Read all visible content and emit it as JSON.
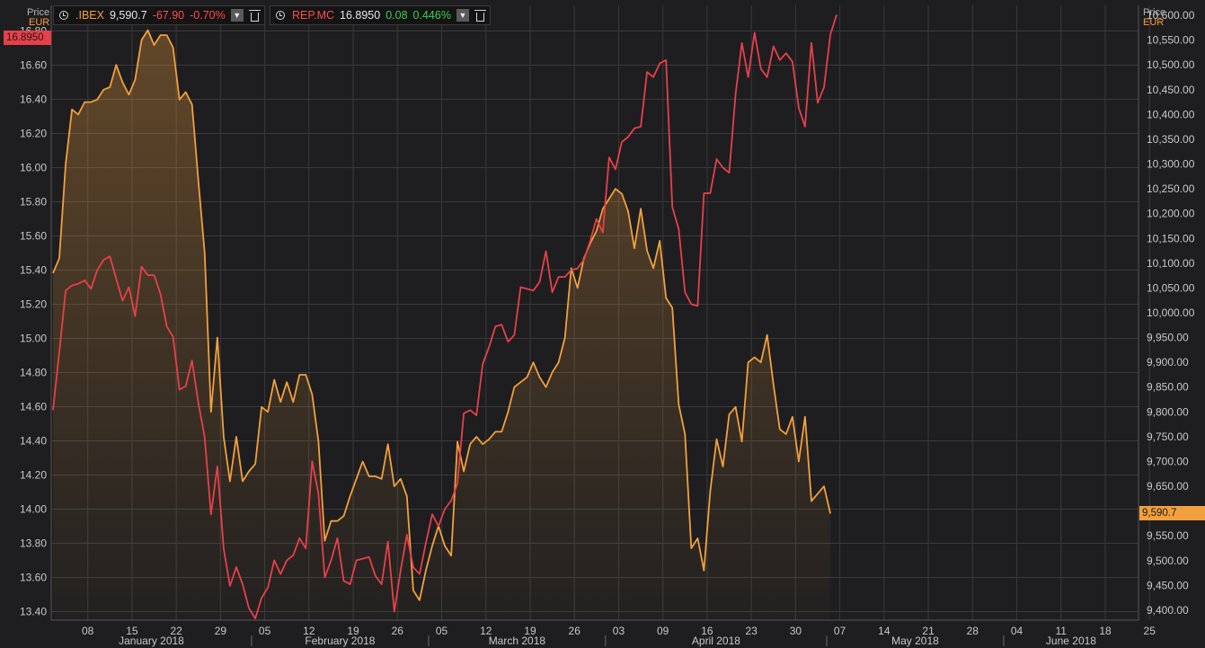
{
  "legend": [
    {
      "name": ".IBEX",
      "price": "9,590.7",
      "change": "-67.90",
      "pct": "-0.70%",
      "name_color": "#ff9a3c",
      "change_color": "#ff4b4b"
    },
    {
      "name": "REP.MC",
      "price": "16.8950",
      "change": "0.08",
      "pct": "0.446%",
      "name_color": "#ff4b4b",
      "change_color": "#3ccf4e"
    }
  ],
  "left_axis": {
    "title": "Price",
    "unit": "EUR"
  },
  "right_axis": {
    "title": "Price",
    "unit": "EUR"
  },
  "last_value_tags": {
    "left": "16.8950",
    "right": "9,590.7"
  },
  "colors": {
    "background": "#1e1e20",
    "grid": "#3a3a3c",
    "ibex": "#f2a03d",
    "repsol": "#e8404a"
  },
  "chart_data": {
    "type": "line",
    "x_ticks": [
      "08",
      "15",
      "22",
      "29",
      "05",
      "12",
      "19",
      "26",
      "05",
      "12",
      "19",
      "26",
      "03",
      "09",
      "16",
      "23",
      "30",
      "07",
      "14",
      "21",
      "28",
      "04",
      "11",
      "18",
      "25"
    ],
    "months": [
      "January 2018",
      "February 2018",
      "March 2018",
      "April 2018",
      "May 2018",
      "June 2018"
    ],
    "left_axis": {
      "range": [
        13.35,
        16.95
      ],
      "ticks": [
        "13.40",
        "13.60",
        "13.80",
        "14.00",
        "14.20",
        "14.40",
        "14.60",
        "14.80",
        "15.00",
        "15.20",
        "15.40",
        "15.60",
        "15.80",
        "16.00",
        "16.20",
        "16.40",
        "16.60",
        "16.80"
      ]
    },
    "right_axis": {
      "range": [
        9380,
        10620
      ],
      "ticks": [
        "9,400.00",
        "9,450.00",
        "9,500.00",
        "9,550.00",
        "9,600.00",
        "9,650.00",
        "9,700.00",
        "9,750.00",
        "9,800.00",
        "9,850.00",
        "9,900.00",
        "9,950.00",
        "10,000.00",
        "10,050.00",
        "10,100.00",
        "10,150.00",
        "10,200.00",
        "10,250.00",
        "10,300.00",
        "10,350.00",
        "10,400.00",
        "10,450.00",
        "10,500.00",
        "10,550.00",
        "10,600.00"
      ]
    },
    "series": [
      {
        "name": ".IBEX",
        "axis": "right",
        "style": "area",
        "values": [
          10080,
          10110,
          10300,
          10410,
          10400,
          10425,
          10425,
          10430,
          10450,
          10455,
          10500,
          10465,
          10440,
          10470,
          10550,
          10570,
          10540,
          10560,
          10560,
          10535,
          10430,
          10445,
          10420,
          10265,
          10120,
          9800,
          9950,
          9750,
          9660,
          9750,
          9660,
          9680,
          9695,
          9810,
          9800,
          9865,
          9820,
          9860,
          9820,
          9875,
          9875,
          9835,
          9740,
          9540,
          9580,
          9580,
          9590,
          9630,
          9665,
          9700,
          9670,
          9670,
          9665,
          9735,
          9650,
          9665,
          9630,
          9440,
          9420,
          9480,
          9530,
          9570,
          9530,
          9510,
          9740,
          9680,
          9735,
          9750,
          9735,
          9745,
          9760,
          9760,
          9800,
          9850,
          9860,
          9870,
          9900,
          9870,
          9850,
          9880,
          9900,
          9950,
          10090,
          10050,
          10110,
          10140,
          10165,
          10210,
          10230,
          10250,
          10240,
          10205,
          10130,
          10210,
          10125,
          10090,
          10145,
          10030,
          10010,
          9815,
          9755,
          9525,
          9545,
          9480,
          9640,
          9745,
          9690,
          9795,
          9810,
          9740,
          9900,
          9910,
          9900,
          9955,
          9855,
          9765,
          9755,
          9790,
          9700,
          9790,
          9620,
          9635,
          9650,
          9595
        ]
      },
      {
        "name": "REP.MC",
        "axis": "left",
        "style": "line",
        "values": [
          14.58,
          14.92,
          15.28,
          15.31,
          15.32,
          15.34,
          15.29,
          15.4,
          15.46,
          15.48,
          15.35,
          15.22,
          15.3,
          15.13,
          15.42,
          15.37,
          15.37,
          15.26,
          15.07,
          15.01,
          14.7,
          14.72,
          14.87,
          14.62,
          14.42,
          13.97,
          14.25,
          13.77,
          13.55,
          13.66,
          13.56,
          13.42,
          13.36,
          13.48,
          13.54,
          13.7,
          13.62,
          13.7,
          13.73,
          13.83,
          13.77,
          14.28,
          14.09,
          13.6,
          13.7,
          13.83,
          13.58,
          13.56,
          13.7,
          13.71,
          13.72,
          13.61,
          13.56,
          13.81,
          13.4,
          13.64,
          13.85,
          13.66,
          13.62,
          13.8,
          13.97,
          13.9,
          14.0,
          14.05,
          14.15,
          14.56,
          14.58,
          14.55,
          14.85,
          14.95,
          15.07,
          15.08,
          14.98,
          15.02,
          15.3,
          15.29,
          15.28,
          15.33,
          15.51,
          15.27,
          15.36,
          15.36,
          15.4,
          15.41,
          15.46,
          15.57,
          15.7,
          15.62,
          16.06,
          15.99,
          16.15,
          16.18,
          16.23,
          16.24,
          16.56,
          16.53,
          16.61,
          16.63,
          15.77,
          15.64,
          15.27,
          15.2,
          15.19,
          15.85,
          15.85,
          16.05,
          16.0,
          15.97,
          16.43,
          16.73,
          16.53,
          16.79,
          16.58,
          16.53,
          16.71,
          16.63,
          16.67,
          16.62,
          16.35,
          16.24,
          16.73,
          16.38,
          16.47,
          16.78,
          16.895
        ]
      }
    ]
  }
}
